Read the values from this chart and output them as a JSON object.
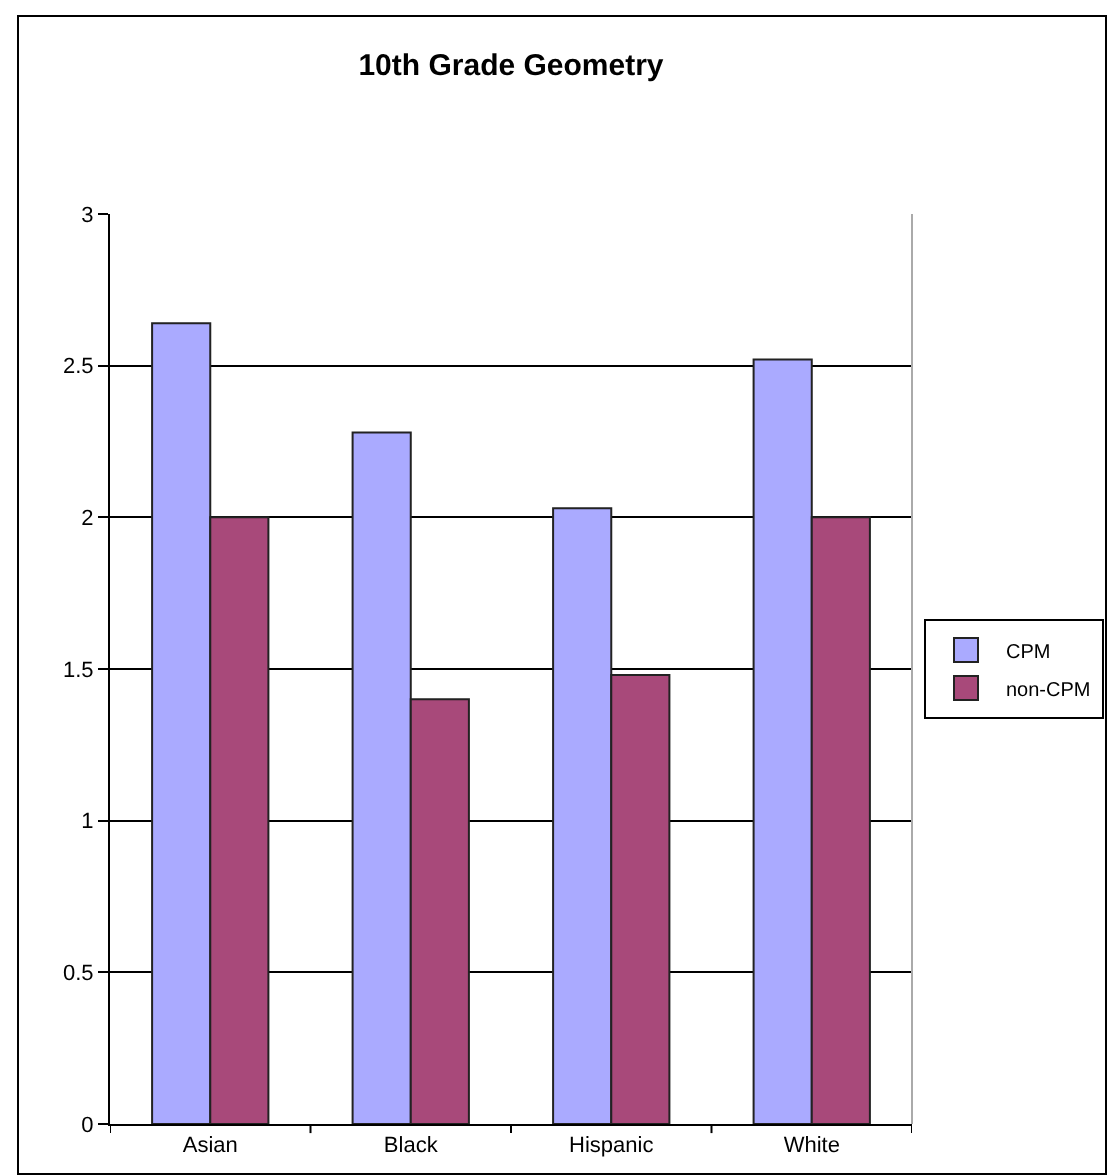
{
  "chart_data": {
    "type": "bar",
    "title": "10th Grade Geometry",
    "categories": [
      "Asian",
      "Black",
      "Hispanic",
      "White"
    ],
    "series": [
      {
        "name": "CPM",
        "color": "#aaaaff",
        "values": [
          2.64,
          2.28,
          2.03,
          2.52
        ]
      },
      {
        "name": "non-CPM",
        "color": "#a8497a",
        "values": [
          2.0,
          1.4,
          1.48,
          2.0
        ]
      }
    ],
    "ylim": [
      0,
      3
    ],
    "yticks": [
      0,
      0.5,
      1,
      1.5,
      2,
      2.5,
      3
    ],
    "grid": "y",
    "legend": "right"
  }
}
